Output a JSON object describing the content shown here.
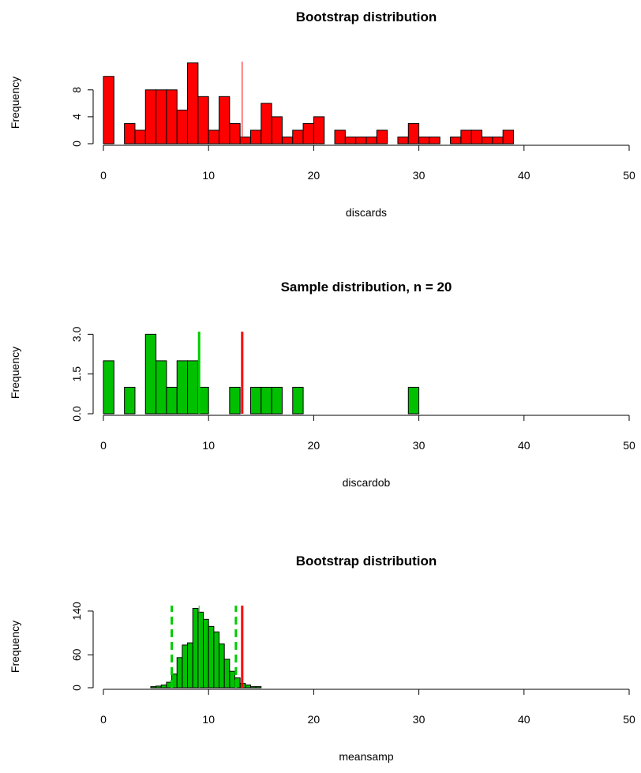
{
  "chart_data": [
    {
      "type": "histogram",
      "title": "Bootstrap distribution",
      "xlabel": "discards",
      "ylabel": "Frequency",
      "color": "#ff0000",
      "bins": [
        0,
        1,
        2,
        3,
        4,
        5,
        6,
        7,
        8,
        9,
        10,
        11,
        12,
        13,
        14,
        15,
        16,
        17,
        18,
        19,
        20,
        21,
        22,
        23,
        24,
        25,
        26,
        27,
        28,
        29,
        30,
        31,
        32,
        33,
        34,
        35,
        36,
        37,
        38,
        39
      ],
      "counts": [
        10,
        0,
        3,
        2,
        8,
        8,
        8,
        5,
        12,
        7,
        2,
        7,
        3,
        1,
        2,
        6,
        4,
        1,
        2,
        3,
        4,
        0,
        2,
        1,
        1,
        1,
        2,
        0,
        1,
        3,
        1,
        1,
        0,
        1,
        2,
        2,
        1,
        1,
        2
      ],
      "xlim": [
        0,
        50
      ],
      "xticks": [
        0,
        10,
        20,
        30,
        40,
        50
      ],
      "ylim": [
        0,
        12.2
      ],
      "yticks": [
        0,
        4,
        8
      ],
      "vlines": [
        {
          "value": 13.2,
          "color": "#ff0000",
          "width": 1,
          "dash": false
        }
      ]
    },
    {
      "type": "histogram",
      "title": "Sample distribution, n = 20",
      "xlabel": "discardob",
      "ylabel": "Frequency",
      "color": "#00c000",
      "bins": [
        0,
        1,
        2,
        3,
        4,
        5,
        6,
        7,
        8,
        9,
        10,
        11,
        12,
        13,
        14,
        15,
        16,
        17,
        18,
        19,
        20,
        21,
        22,
        23,
        24,
        25,
        26,
        27,
        28,
        29,
        30
      ],
      "counts": [
        2,
        0,
        1,
        0,
        3,
        2,
        1,
        2,
        2,
        1,
        0,
        0,
        1,
        0,
        1,
        1,
        1,
        0,
        1,
        0,
        0,
        0,
        0,
        0,
        0,
        0,
        0,
        0,
        0,
        1
      ],
      "xlim": [
        0,
        50
      ],
      "xticks": [
        0,
        10,
        20,
        30,
        40,
        50
      ],
      "ylim": [
        0,
        3.1
      ],
      "yticks": [
        {
          "value": 0,
          "label": "0.0"
        },
        {
          "value": 1.5,
          "label": "1.5"
        },
        {
          "value": 3,
          "label": "3.0"
        }
      ],
      "vlines": [
        {
          "value": 9.1,
          "color": "#00cc00",
          "width": 3,
          "dash": false
        },
        {
          "value": 13.2,
          "color": "#ff0000",
          "width": 3,
          "dash": false
        }
      ]
    },
    {
      "type": "histogram",
      "title": "Bootstrap distribution",
      "xlabel": "meansamp",
      "ylabel": "Frequency",
      "color": "#00c000",
      "bins": [
        4.5,
        5,
        5.5,
        6,
        6.5,
        7,
        7.5,
        8,
        8.5,
        9,
        9.5,
        10,
        10.5,
        11,
        11.5,
        12,
        12.5,
        13,
        13.5,
        14,
        14.5,
        15
      ],
      "counts": [
        2,
        3,
        5,
        10,
        25,
        55,
        78,
        82,
        145,
        138,
        125,
        112,
        102,
        80,
        52,
        30,
        18,
        8,
        5,
        2,
        2
      ],
      "xlim": [
        0,
        50
      ],
      "xticks": [
        0,
        10,
        20,
        30,
        40,
        50
      ],
      "ylim": [
        0,
        150
      ],
      "yticks": [
        0,
        60,
        140
      ],
      "vlines": [
        {
          "value": 6.5,
          "color": "#00cc00",
          "width": 3,
          "dash": true
        },
        {
          "value": 9.1,
          "color": "#00cc00",
          "width": 1,
          "dash": false
        },
        {
          "value": 12.6,
          "color": "#00cc00",
          "width": 3,
          "dash": true
        },
        {
          "value": 13.2,
          "color": "#ff0000",
          "width": 3,
          "dash": false
        }
      ]
    }
  ]
}
